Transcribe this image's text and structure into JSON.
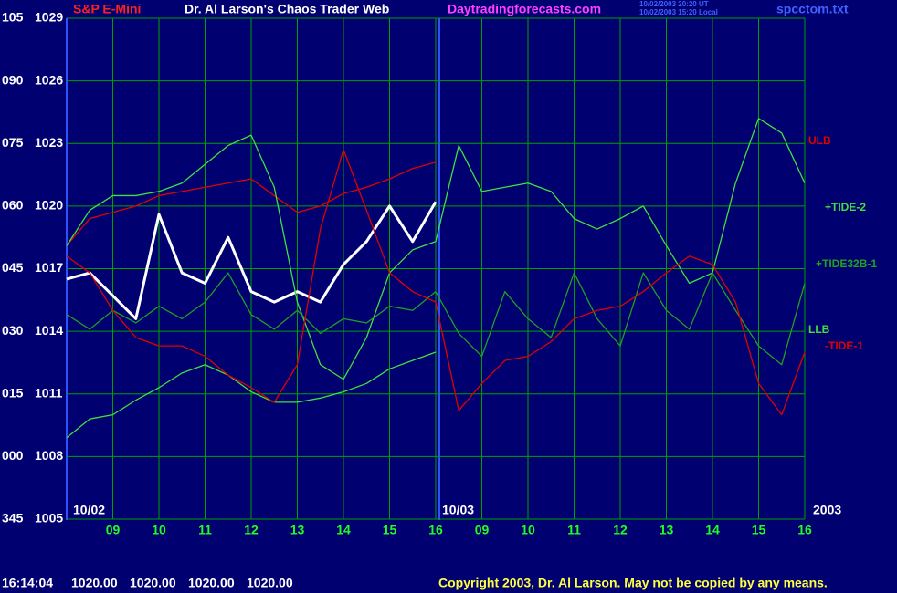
{
  "header": {
    "instrument": "S&P E-Mini",
    "site_title": "Dr. Al Larson's Chaos Trader Web",
    "url": "Daytradingforecasts.com",
    "time_ut": "10/02/2003 20:20 UT",
    "time_local": "10/02/2003 15:20 Local",
    "file": "spcctom.txt"
  },
  "chart_data": {
    "type": "line",
    "x": [
      0,
      0.5,
      1,
      1.5,
      2,
      2.5,
      3,
      3.5,
      4,
      4.5,
      5,
      5.5,
      6,
      6.5,
      7,
      7.5,
      8,
      8.5,
      9,
      9.5,
      10,
      10.5,
      11,
      11.5,
      12,
      12.5,
      13,
      13.5,
      14,
      14.5,
      15,
      15.5,
      16
    ],
    "xlim": [
      0,
      16
    ],
    "xticks": [
      {
        "value": 1,
        "label": "09"
      },
      {
        "value": 2,
        "label": "10"
      },
      {
        "value": 3,
        "label": "11"
      },
      {
        "value": 4,
        "label": "12"
      },
      {
        "value": 5,
        "label": "13"
      },
      {
        "value": 6,
        "label": "14"
      },
      {
        "value": 7,
        "label": "15"
      },
      {
        "value": 8,
        "label": "16"
      },
      {
        "value": 9,
        "label": "09"
      },
      {
        "value": 10,
        "label": "10"
      },
      {
        "value": 11,
        "label": "11"
      },
      {
        "value": 12,
        "label": "12"
      },
      {
        "value": 13,
        "label": "13"
      },
      {
        "value": 14,
        "label": "14"
      },
      {
        "value": 15,
        "label": "15"
      },
      {
        "value": 16,
        "label": "16"
      }
    ],
    "date_labels": [
      "10/02",
      "10/03",
      "2003"
    ],
    "ylim": [
      1005,
      1029
    ],
    "yticks": [
      1005,
      1008,
      1011,
      1014,
      1017,
      1020,
      1023,
      1026,
      1029
    ],
    "angle_labels": [
      "345",
      "000",
      "015",
      "030",
      "045",
      "060",
      "075",
      "090",
      "105"
    ],
    "grid": true,
    "series": [
      {
        "color": "#ffffff",
        "values": [
          1016.5,
          1016.8,
          1015.7,
          1014.6,
          1019.6,
          1016.8,
          1016.3,
          1018.5,
          1015.9,
          1015.4,
          1015.9,
          1015.4,
          1017.2,
          1018.3,
          1020.0,
          1018.3,
          1020.2,
          null,
          null,
          null,
          null,
          null,
          null,
          null,
          null,
          null,
          null,
          null,
          null,
          null,
          null,
          null,
          null
        ]
      },
      {
        "name": "ULB",
        "color": "#e00000",
        "values": [
          1018.1,
          1019.4,
          1019.7,
          1020.0,
          1020.5,
          1020.7,
          1020.9,
          1021.1,
          1021.3,
          1020.5,
          1019.7,
          1020.0,
          1020.6,
          1020.9,
          1021.3,
          1021.8,
          1022.1,
          null,
          null,
          null,
          null,
          null,
          null,
          null,
          null,
          null,
          null,
          null,
          null,
          null,
          null,
          null,
          null
        ]
      },
      {
        "name": "+TIDE-2",
        "color": "#40e040",
        "values": [
          1018.1,
          1019.8,
          1020.5,
          1020.5,
          1020.7,
          1021.1,
          1022.0,
          1022.9,
          1023.4,
          1020.9,
          1015.4,
          1012.4,
          1011.7,
          1013.7,
          1016.8,
          1017.9,
          1018.3,
          1022.9,
          1020.7,
          1020.9,
          1021.1,
          1020.7,
          1019.4,
          1018.9,
          1019.4,
          1020.0,
          1018.1,
          1016.3,
          1016.8,
          1021.1,
          1024.2,
          1023.5,
          1021.1
        ]
      },
      {
        "name": "+TIDE32B-1",
        "color": "#20a020",
        "values": [
          1014.8,
          1014.1,
          1015.0,
          1014.4,
          1015.2,
          1014.6,
          1015.4,
          1016.8,
          1014.8,
          1014.1,
          1015.0,
          1013.9,
          1014.6,
          1014.4,
          1015.2,
          1015.0,
          1015.9,
          1013.9,
          1012.8,
          1015.9,
          1014.6,
          1013.7,
          1016.8,
          1014.6,
          1013.3,
          1016.8,
          1015.0,
          1014.1,
          1016.8,
          1015.0,
          1013.3,
          1012.4,
          1016.3
        ]
      },
      {
        "name": "LLB",
        "color": "#40e040",
        "values": [
          1008.9,
          1009.8,
          1010.0,
          1010.7,
          1011.3,
          1012.0,
          1012.4,
          1011.9,
          1011.1,
          1010.6,
          1010.6,
          1010.8,
          1011.1,
          1011.5,
          1012.2,
          1012.6,
          1013.0,
          null,
          null,
          null,
          null,
          null,
          null,
          null,
          null,
          null,
          null,
          null,
          null,
          null,
          null,
          null,
          null
        ]
      },
      {
        "name": "-TIDE-1",
        "color": "#e00000",
        "values": [
          1017.6,
          1016.8,
          1015.0,
          1013.7,
          1013.3,
          1013.3,
          1012.8,
          1011.9,
          1011.3,
          1010.6,
          1012.4,
          1018.9,
          1022.7,
          1019.8,
          1016.8,
          1015.9,
          1015.4,
          1010.2,
          1011.5,
          1012.6,
          1012.8,
          1013.5,
          1014.6,
          1015.0,
          1015.2,
          1015.9,
          1016.8,
          1017.6,
          1017.2,
          1015.4,
          1011.5,
          1010.0,
          1013.0
        ]
      }
    ]
  },
  "footer": {
    "time": "16:14:04",
    "quotes": [
      "1020.00",
      "1020.00",
      "1020.00",
      "1020.00"
    ],
    "copyright": "Copyright 2003, Dr. Al Larson. May not be copied by any means."
  }
}
